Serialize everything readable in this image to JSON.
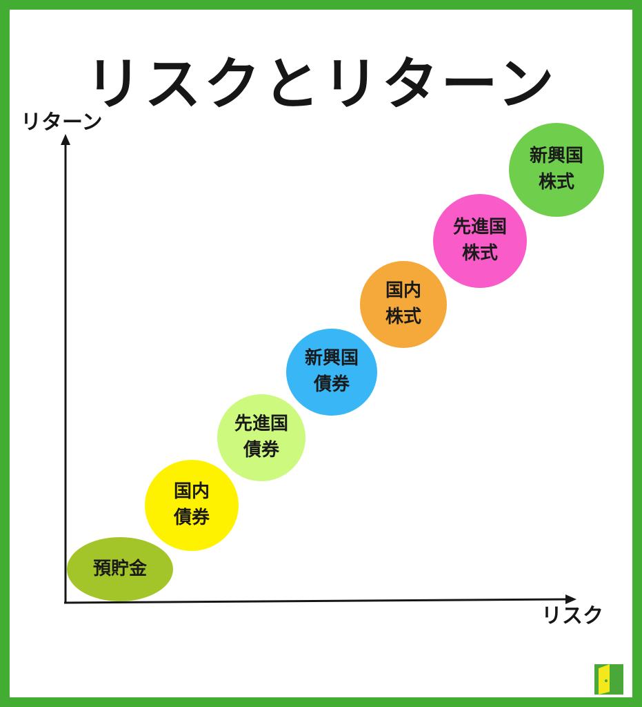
{
  "title": "リスクとリターン",
  "axes": {
    "y_label": "リターン",
    "x_label": "リスク"
  },
  "items": [
    {
      "label": "預貯金",
      "color": "#a3c52a"
    },
    {
      "label": "国内\n債券",
      "color": "#fff200"
    },
    {
      "label": "先進国\n債券",
      "color": "#cdf97e"
    },
    {
      "label": "新興国\n債券",
      "color": "#38b6f5"
    },
    {
      "label": "国内\n株式",
      "color": "#f4a93a"
    },
    {
      "label": "先進国\n株式",
      "color": "#f95bc8"
    },
    {
      "label": "新興国\n株式",
      "color": "#6fce4c"
    }
  ],
  "colors": {
    "frame": "#43ad33",
    "axis": "#161616",
    "logo_green": "#4aa83a",
    "logo_yellow": "#f3e81c"
  },
  "logo_icon": "investment-site-logo-icon"
}
